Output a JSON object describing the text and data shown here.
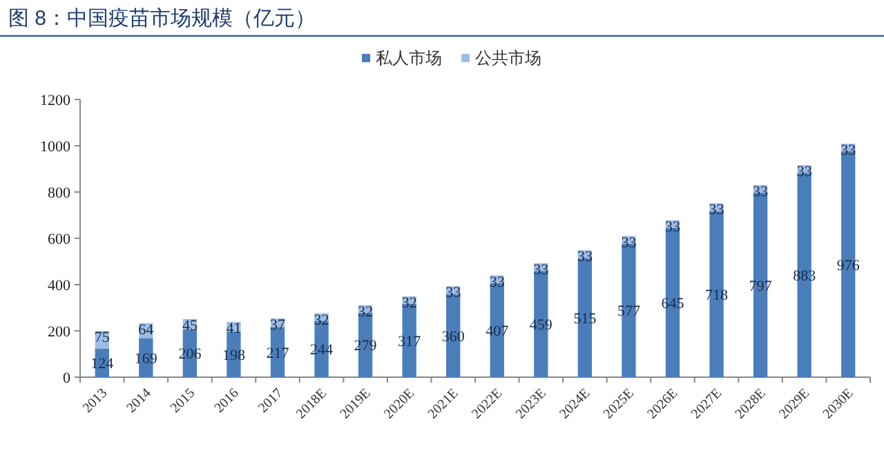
{
  "chart_data": {
    "type": "bar",
    "title": "图 8：中国疫苗市场规模（亿元）",
    "categories": [
      "2013",
      "2014",
      "2015",
      "2016",
      "2017",
      "2018E",
      "2019E",
      "2020E",
      "2021E",
      "2022E",
      "2023E",
      "2024E",
      "2025E",
      "2026E",
      "2027E",
      "2028E",
      "2029E",
      "2030E"
    ],
    "series": [
      {
        "name": "私人市场",
        "color": "#4a7ebb",
        "values": [
          124,
          169,
          206,
          198,
          217,
          244,
          279,
          317,
          360,
          407,
          459,
          515,
          577,
          645,
          718,
          797,
          883,
          976
        ]
      },
      {
        "name": "公共市场",
        "color": "#9dbde6",
        "values": [
          75,
          64,
          45,
          41,
          37,
          32,
          32,
          32,
          33,
          33,
          33,
          33,
          33,
          33,
          33,
          33,
          33,
          33
        ]
      }
    ],
    "stacked": true,
    "data_labels": true,
    "legend": "top",
    "ylim": [
      0,
      1200
    ],
    "yticks": [
      0,
      200,
      400,
      600,
      800,
      1000,
      1200
    ]
  }
}
